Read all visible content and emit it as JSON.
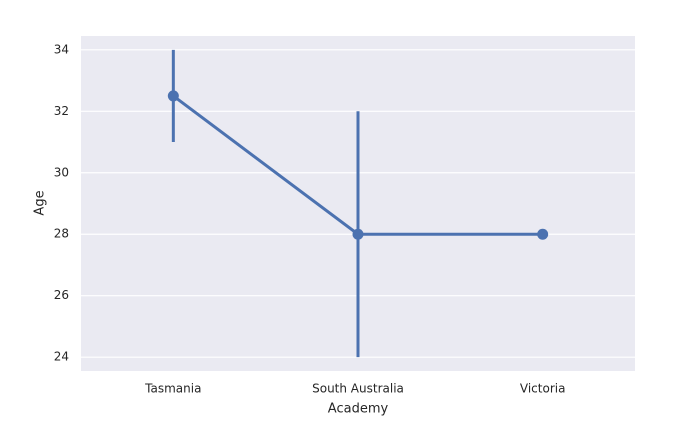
{
  "chart_data": {
    "type": "point",
    "x_label": "Academy",
    "y_label": "Age",
    "categories": [
      "Tasmania",
      "South Australia",
      "Victoria"
    ],
    "values": [
      32.5,
      28,
      28
    ],
    "ci_low": [
      31,
      24,
      null
    ],
    "ci_high": [
      34,
      32,
      null
    ],
    "color": "#4c72b0",
    "ylim": [
      23.55,
      34.45
    ],
    "yticks": [
      24,
      26,
      28,
      30,
      32,
      34
    ],
    "grid": true
  }
}
